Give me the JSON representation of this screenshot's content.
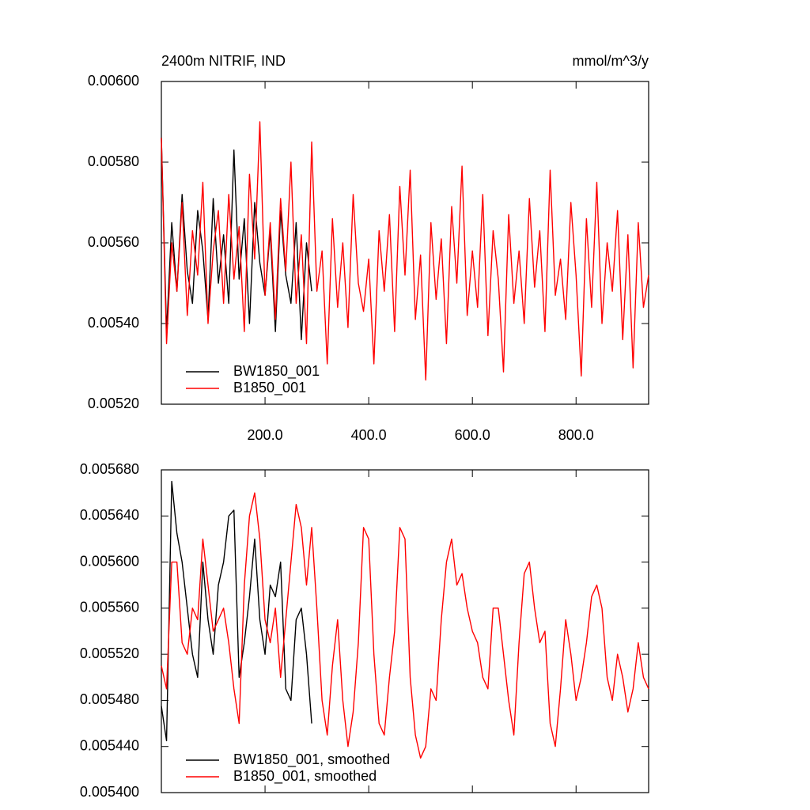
{
  "chart_data": [
    {
      "type": "line",
      "title": "2400m NITRIF, IND",
      "units": "mmol/m^3/y",
      "xlim": [
        0,
        940
      ],
      "xticks": [
        {
          "value": 200,
          "label": "200.0"
        },
        {
          "value": 400,
          "label": "400.0"
        },
        {
          "value": 600,
          "label": "600.0"
        },
        {
          "value": 800,
          "label": "800.0"
        }
      ],
      "ylim": [
        0.0052,
        0.006
      ],
      "yticks": [
        {
          "value": 0.0052,
          "label": "0.00520"
        },
        {
          "value": 0.0054,
          "label": "0.00540"
        },
        {
          "value": 0.0056,
          "label": "0.00560"
        },
        {
          "value": 0.0058,
          "label": "0.00580"
        },
        {
          "value": 0.006,
          "label": "0.00600"
        }
      ],
      "legend": "lower left",
      "series": [
        {
          "name": "BW1850_001",
          "color": "#000000",
          "x": [
            0,
            10,
            20,
            30,
            40,
            50,
            60,
            70,
            80,
            90,
            100,
            110,
            120,
            130,
            140,
            150,
            160,
            170,
            180,
            190,
            200,
            210,
            220,
            230,
            240,
            250,
            260,
            270,
            280,
            290
          ],
          "values": [
            0.00586,
            0.00538,
            0.00565,
            0.00548,
            0.00572,
            0.00553,
            0.00545,
            0.00568,
            0.00558,
            0.00541,
            0.00571,
            0.0055,
            0.00562,
            0.00545,
            0.00583,
            0.00551,
            0.00566,
            0.0054,
            0.0057,
            0.00555,
            0.00547,
            0.00563,
            0.00538,
            0.00568,
            0.00552,
            0.00545,
            0.00565,
            0.00536,
            0.0056,
            0.00548
          ]
        },
        {
          "name": "B1850_001",
          "color": "#ff0000",
          "x": [
            0,
            10,
            20,
            30,
            40,
            50,
            60,
            70,
            80,
            90,
            100,
            110,
            120,
            130,
            140,
            150,
            160,
            170,
            180,
            190,
            200,
            210,
            220,
            230,
            240,
            250,
            260,
            270,
            280,
            290,
            300,
            310,
            320,
            330,
            340,
            350,
            360,
            370,
            380,
            390,
            400,
            410,
            420,
            430,
            440,
            450,
            460,
            470,
            480,
            490,
            500,
            510,
            520,
            530,
            540,
            550,
            560,
            570,
            580,
            590,
            600,
            610,
            620,
            630,
            640,
            650,
            660,
            670,
            680,
            690,
            700,
            710,
            720,
            730,
            740,
            750,
            760,
            770,
            780,
            790,
            800,
            810,
            820,
            830,
            840,
            850,
            860,
            870,
            880,
            890,
            900,
            910,
            920,
            930,
            940
          ],
          "values": [
            0.00586,
            0.00535,
            0.0056,
            0.00548,
            0.0057,
            0.00542,
            0.00563,
            0.00552,
            0.00575,
            0.0054,
            0.00558,
            0.00568,
            0.00545,
            0.00572,
            0.00551,
            0.00564,
            0.00538,
            0.00577,
            0.00556,
            0.0059,
            0.00547,
            0.00565,
            0.00541,
            0.00571,
            0.00553,
            0.0058,
            0.00545,
            0.00562,
            0.00535,
            0.00585,
            0.00548,
            0.00558,
            0.0053,
            0.00566,
            0.00544,
            0.0056,
            0.00539,
            0.00572,
            0.0055,
            0.00543,
            0.00556,
            0.0053,
            0.00563,
            0.00548,
            0.00567,
            0.00538,
            0.00574,
            0.00552,
            0.00578,
            0.00541,
            0.00557,
            0.00526,
            0.00565,
            0.00546,
            0.00561,
            0.00535,
            0.00569,
            0.0055,
            0.00579,
            0.00542,
            0.00558,
            0.00544,
            0.00572,
            0.00537,
            0.00563,
            0.00551,
            0.00528,
            0.00567,
            0.00545,
            0.00558,
            0.0054,
            0.00571,
            0.00549,
            0.00563,
            0.00538,
            0.00578,
            0.00547,
            0.00556,
            0.00541,
            0.0057,
            0.00552,
            0.00527,
            0.00566,
            0.00544,
            0.00575,
            0.0054,
            0.0056,
            0.00548,
            0.00568,
            0.00536,
            0.00562,
            0.00529,
            0.00565,
            0.00544,
            0.00552
          ]
        }
      ]
    },
    {
      "type": "line",
      "xlim": [
        0,
        940
      ],
      "xticks": [
        200,
        400,
        600,
        800
      ],
      "xtick_labels": false,
      "ylim": [
        0.0054,
        0.00568
      ],
      "yticks": [
        {
          "value": 0.0054,
          "label": "0.005400"
        },
        {
          "value": 0.00544,
          "label": "0.005440"
        },
        {
          "value": 0.00548,
          "label": "0.005480"
        },
        {
          "value": 0.00552,
          "label": "0.005520"
        },
        {
          "value": 0.00556,
          "label": "0.005560"
        },
        {
          "value": 0.0056,
          "label": "0.005600"
        },
        {
          "value": 0.00564,
          "label": "0.005640"
        },
        {
          "value": 0.00568,
          "label": "0.005680"
        }
      ],
      "legend": "lower left",
      "series": [
        {
          "name": "BW1850_001, smoothed",
          "color": "#000000",
          "x": [
            0,
            10,
            20,
            30,
            40,
            50,
            60,
            70,
            80,
            90,
            100,
            110,
            120,
            130,
            140,
            150,
            160,
            170,
            180,
            190,
            200,
            210,
            220,
            230,
            240,
            250,
            260,
            270,
            280,
            290
          ],
          "values": [
            0.005475,
            0.005445,
            0.00567,
            0.005625,
            0.0056,
            0.00556,
            0.00552,
            0.0055,
            0.0056,
            0.00555,
            0.00552,
            0.00558,
            0.0056,
            0.00564,
            0.005645,
            0.0055,
            0.00553,
            0.00557,
            0.00562,
            0.00555,
            0.00552,
            0.00558,
            0.00557,
            0.0056,
            0.00549,
            0.00548,
            0.00555,
            0.00556,
            0.00552,
            0.00546
          ]
        },
        {
          "name": "B1850_001, smoothed",
          "color": "#ff0000",
          "x": [
            0,
            10,
            20,
            30,
            40,
            50,
            60,
            70,
            80,
            90,
            100,
            110,
            120,
            130,
            140,
            150,
            160,
            170,
            180,
            190,
            200,
            210,
            220,
            230,
            240,
            250,
            260,
            270,
            280,
            290,
            300,
            310,
            320,
            330,
            340,
            350,
            360,
            370,
            380,
            390,
            400,
            410,
            420,
            430,
            440,
            450,
            460,
            470,
            480,
            490,
            500,
            510,
            520,
            530,
            540,
            550,
            560,
            570,
            580,
            590,
            600,
            610,
            620,
            630,
            640,
            650,
            660,
            670,
            680,
            690,
            700,
            710,
            720,
            730,
            740,
            750,
            760,
            770,
            780,
            790,
            800,
            810,
            820,
            830,
            840,
            850,
            860,
            870,
            880,
            890,
            900,
            910,
            920,
            930,
            940
          ],
          "values": [
            0.00551,
            0.00549,
            0.0056,
            0.0056,
            0.00553,
            0.00552,
            0.00556,
            0.00555,
            0.00562,
            0.00558,
            0.00554,
            0.00555,
            0.00556,
            0.00553,
            0.00549,
            0.00546,
            0.00558,
            0.00564,
            0.00566,
            0.00562,
            0.00555,
            0.00553,
            0.00556,
            0.0055,
            0.00555,
            0.0056,
            0.00565,
            0.00563,
            0.00558,
            0.00563,
            0.00556,
            0.00548,
            0.00545,
            0.00551,
            0.00555,
            0.00548,
            0.00544,
            0.00547,
            0.00553,
            0.00563,
            0.00562,
            0.00552,
            0.00546,
            0.00545,
            0.0055,
            0.00554,
            0.00563,
            0.00562,
            0.0055,
            0.00545,
            0.00543,
            0.00544,
            0.00549,
            0.00548,
            0.00555,
            0.0056,
            0.00562,
            0.00558,
            0.00559,
            0.00556,
            0.00554,
            0.00553,
            0.0055,
            0.00549,
            0.00556,
            0.00556,
            0.00552,
            0.00548,
            0.00545,
            0.00553,
            0.00559,
            0.0056,
            0.00556,
            0.00553,
            0.00554,
            0.00546,
            0.00544,
            0.00549,
            0.00555,
            0.00552,
            0.00548,
            0.0055,
            0.00553,
            0.00557,
            0.00558,
            0.00556,
            0.0055,
            0.00548,
            0.00552,
            0.0055,
            0.00547,
            0.00549,
            0.00553,
            0.0055,
            0.00549
          ]
        }
      ]
    }
  ]
}
